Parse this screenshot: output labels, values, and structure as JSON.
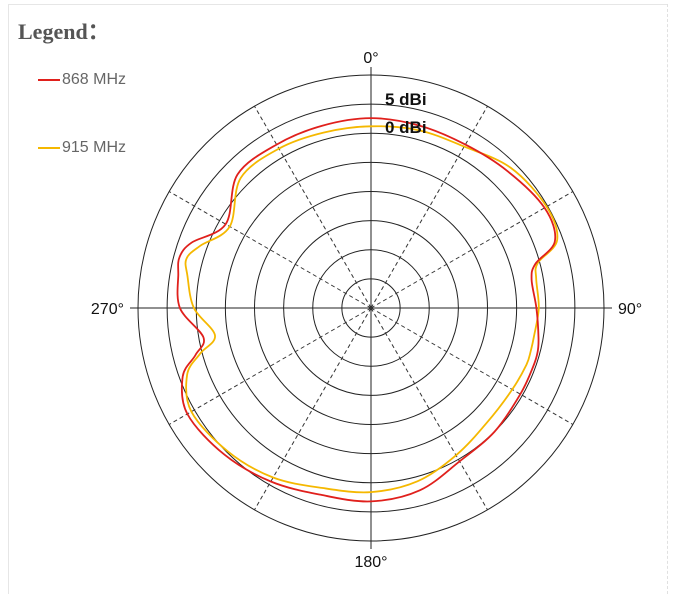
{
  "legend": {
    "title": "Legend：",
    "items": [
      {
        "label": "868 MHz",
        "color": "#e0201c"
      },
      {
        "label": "915 MHz",
        "color": "#f5b800"
      }
    ]
  },
  "chart_data": {
    "type": "polar-line",
    "angle_labels": [
      {
        "angle": 0,
        "text": "0°"
      },
      {
        "angle": 90,
        "text": "90°"
      },
      {
        "angle": 180,
        "text": "180°"
      },
      {
        "angle": 270,
        "text": "270°"
      }
    ],
    "ring_labels": [
      "5 dBi",
      "0 dBi"
    ],
    "ring_count": 8,
    "spokes_deg": [
      30,
      60,
      120,
      150,
      210,
      240,
      300,
      330
    ],
    "series": [
      {
        "name": "868 MHz",
        "color": "#e0201c",
        "angles_deg": [
          0,
          15,
          30,
          45,
          60,
          70,
          75,
          80,
          90,
          100,
          105,
          110,
          120,
          135,
          150,
          165,
          180,
          195,
          210,
          225,
          240,
          250,
          255,
          260,
          270,
          280,
          285,
          290,
          300,
          315,
          330,
          345
        ],
        "radius_fraction": [
          0.815,
          0.81,
          0.81,
          0.83,
          0.86,
          0.84,
          0.73,
          0.7,
          0.71,
          0.73,
          0.74,
          0.74,
          0.74,
          0.75,
          0.76,
          0.81,
          0.83,
          0.83,
          0.86,
          0.89,
          0.91,
          0.86,
          0.78,
          0.73,
          0.82,
          0.84,
          0.85,
          0.82,
          0.72,
          0.81,
          0.81,
          0.81
        ]
      },
      {
        "name": "915 MHz",
        "color": "#f5b800",
        "angles_deg": [
          0,
          15,
          30,
          45,
          60,
          70,
          75,
          80,
          90,
          100,
          105,
          110,
          120,
          135,
          150,
          165,
          180,
          195,
          210,
          225,
          240,
          250,
          255,
          260,
          270,
          280,
          285,
          290,
          300,
          315,
          330,
          345
        ],
        "radius_fraction": [
          0.78,
          0.79,
          0.8,
          0.85,
          0.87,
          0.85,
          0.74,
          0.72,
          0.72,
          0.71,
          0.71,
          0.71,
          0.7,
          0.7,
          0.73,
          0.77,
          0.79,
          0.8,
          0.84,
          0.87,
          0.89,
          0.84,
          0.76,
          0.68,
          0.76,
          0.8,
          0.82,
          0.78,
          0.7,
          0.79,
          0.79,
          0.78
        ]
      }
    ]
  }
}
